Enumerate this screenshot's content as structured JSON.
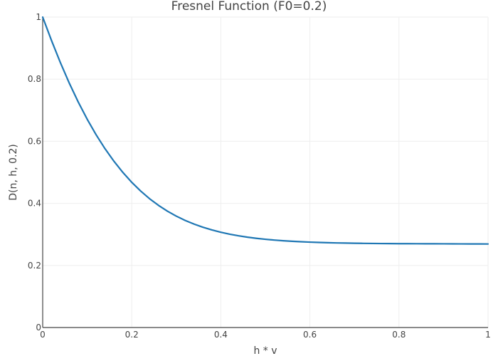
{
  "chart_data": {
    "type": "line",
    "title": "Fresnel Function (F0=0.2)",
    "xlabel": "h * v",
    "ylabel": "D(n, h, 0.2)",
    "xlim": [
      0,
      1
    ],
    "ylim": [
      0,
      1
    ],
    "x_ticks": [
      {
        "value": 0,
        "label": "0"
      },
      {
        "value": 0.2,
        "label": "0.2"
      },
      {
        "value": 0.4,
        "label": "0.4"
      },
      {
        "value": 0.6,
        "label": "0.6"
      },
      {
        "value": 0.8,
        "label": "0.8"
      },
      {
        "value": 1,
        "label": "1"
      }
    ],
    "y_ticks": [
      {
        "value": 0,
        "label": "0"
      },
      {
        "value": 0.2,
        "label": "0.2"
      },
      {
        "value": 0.4,
        "label": "0.4"
      },
      {
        "value": 0.6,
        "label": "0.6"
      },
      {
        "value": 0.8,
        "label": "0.8"
      },
      {
        "value": 1,
        "label": "1"
      }
    ],
    "grid": true,
    "series": [
      {
        "color": "#1f77b4",
        "x": [
          0,
          0.02,
          0.04,
          0.06,
          0.08,
          0.1,
          0.12,
          0.14,
          0.16,
          0.18,
          0.2,
          0.22,
          0.24,
          0.26,
          0.28,
          0.3,
          0.32,
          0.34,
          0.36,
          0.38,
          0.4,
          0.42,
          0.44,
          0.46,
          0.48,
          0.5,
          0.52,
          0.54,
          0.56,
          0.58,
          0.6,
          0.62,
          0.64,
          0.66,
          0.68,
          0.7,
          0.72,
          0.74,
          0.76,
          0.78,
          0.8,
          0.82,
          0.84,
          0.86,
          0.88,
          0.9,
          0.92,
          0.94,
          0.96,
          0.98,
          1
        ],
        "y": [
          1.0,
          0.9239,
          0.8524,
          0.7864,
          0.7259,
          0.6708,
          0.6209,
          0.5759,
          0.5356,
          0.4996,
          0.4677,
          0.4396,
          0.4149,
          0.3935,
          0.3749,
          0.3588,
          0.345,
          0.3331,
          0.3229,
          0.3143,
          0.3069,
          0.3006,
          0.2954,
          0.291,
          0.2873,
          0.2842,
          0.2817,
          0.2795,
          0.2778,
          0.2763,
          0.2751,
          0.2741,
          0.2732,
          0.2725,
          0.272,
          0.2715,
          0.2711,
          0.2708,
          0.2705,
          0.2703,
          0.2701,
          0.27,
          0.2699,
          0.2698,
          0.2697,
          0.2696,
          0.2695,
          0.2694,
          0.2693,
          0.2692,
          0.2691
        ]
      }
    ]
  }
}
